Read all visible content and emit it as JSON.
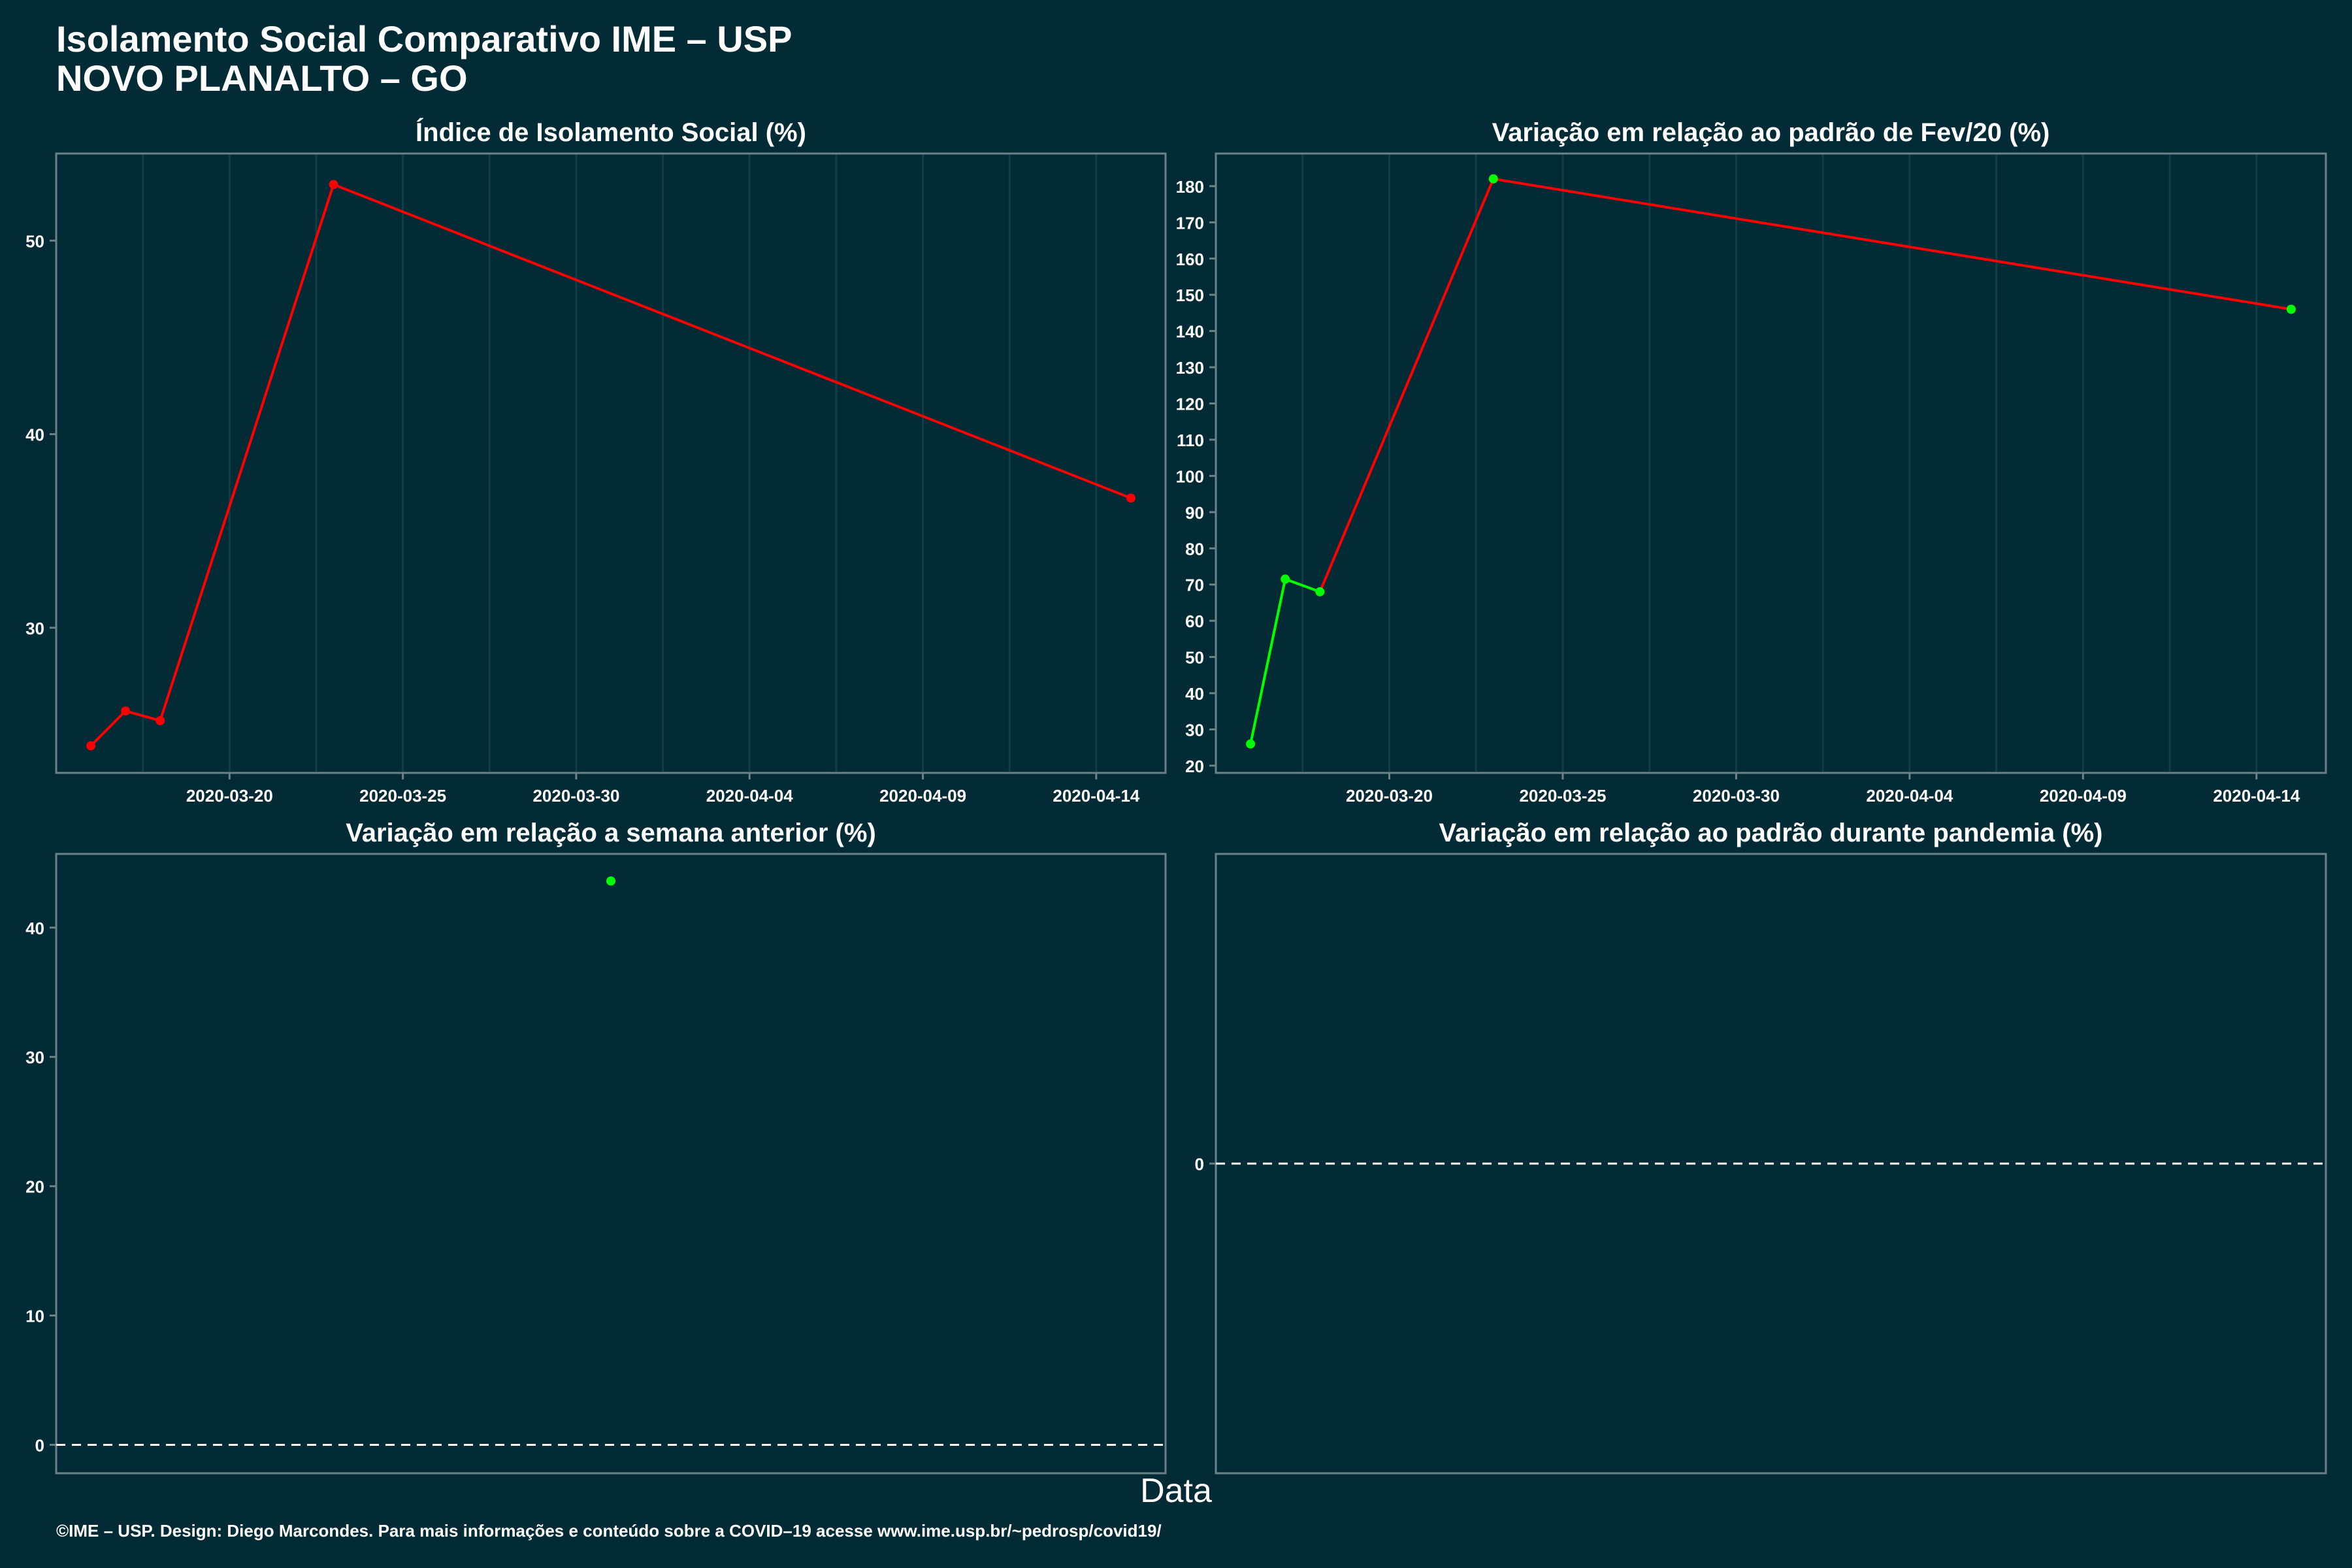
{
  "header": {
    "title_line1": "Isolamento Social Comparativo IME – USP",
    "title_line2": "NOVO PLANALTO – GO"
  },
  "x_axis_label": "Data",
  "footer": "©IME – USP. Design: Diego Marcondes. Para mais informações e conteúdo sobre a COVID–19 acesse www.ime.usp.br/~pedrosp/covid19/",
  "colors": {
    "background": "#022b35",
    "up": "#ff0000",
    "down": "#00ff00",
    "axis": "#6b8288",
    "grid": "#0f3d48"
  },
  "chart_data": [
    {
      "id": "p1",
      "type": "line",
      "title": "Índice de Isolamento Social (%)",
      "x_type": "date",
      "xlim": [
        "2020-03-15",
        "2020-04-16"
      ],
      "x_ticks": [
        "2020-03-20",
        "2020-03-25",
        "2020-03-30",
        "2020-04-04",
        "2020-04-09",
        "2020-04-14"
      ],
      "ylim": [
        22.5,
        54.5
      ],
      "y_ticks": [
        30,
        40,
        50
      ],
      "grid": true,
      "points": [
        {
          "x": "2020-03-16",
          "y": 23.9,
          "c": "red"
        },
        {
          "x": "2020-03-17",
          "y": 25.7,
          "c": "red"
        },
        {
          "x": "2020-03-18",
          "y": 25.2,
          "c": "red"
        },
        {
          "x": "2020-03-23",
          "y": 52.9,
          "c": "red"
        },
        {
          "x": "2020-04-15",
          "y": 36.7,
          "c": "red"
        }
      ]
    },
    {
      "id": "p2",
      "type": "line",
      "title": "Variação em relação ao padrão de Fev/20 (%)",
      "x_type": "date",
      "xlim": [
        "2020-03-15",
        "2020-04-16"
      ],
      "x_ticks": [
        "2020-03-20",
        "2020-03-25",
        "2020-03-30",
        "2020-04-04",
        "2020-04-09",
        "2020-04-14"
      ],
      "ylim": [
        18,
        189
      ],
      "y_ticks": [
        20,
        30,
        40,
        50,
        60,
        70,
        80,
        90,
        100,
        110,
        120,
        130,
        140,
        150,
        160,
        170,
        180
      ],
      "grid": true,
      "points": [
        {
          "x": "2020-03-16",
          "y": 26,
          "c": "green"
        },
        {
          "x": "2020-03-17",
          "y": 71.5,
          "c": "green"
        },
        {
          "x": "2020-03-18",
          "y": 68,
          "c": "green"
        },
        {
          "x": "2020-03-23",
          "y": 182,
          "c": "green"
        },
        {
          "x": "2020-04-15",
          "y": 146,
          "c": "green"
        }
      ],
      "segments": [
        "green",
        "green",
        "red",
        "red"
      ]
    },
    {
      "id": "p3",
      "type": "scatter",
      "title": "Variação em relação a semana anterior (%)",
      "x_type": "date",
      "xlim": [
        "2020-03-15",
        "2020-04-16"
      ],
      "x_ticks": [],
      "ylim": [
        -2.2,
        45.7
      ],
      "y_ticks": [
        0,
        10,
        20,
        30,
        40
      ],
      "grid": false,
      "zero_line": true,
      "points": [
        {
          "x": "2020-03-31",
          "y": 43.6,
          "c": "green"
        }
      ]
    },
    {
      "id": "p4",
      "type": "scatter",
      "title": "Variação em relação ao padrão durante pandemia (%)",
      "x_type": "date",
      "xlim": [
        "2020-03-15",
        "2020-04-16"
      ],
      "x_ticks": [],
      "ylim": [
        -1,
        1
      ],
      "y_ticks": [
        0
      ],
      "grid": false,
      "zero_line": true,
      "points": []
    }
  ]
}
